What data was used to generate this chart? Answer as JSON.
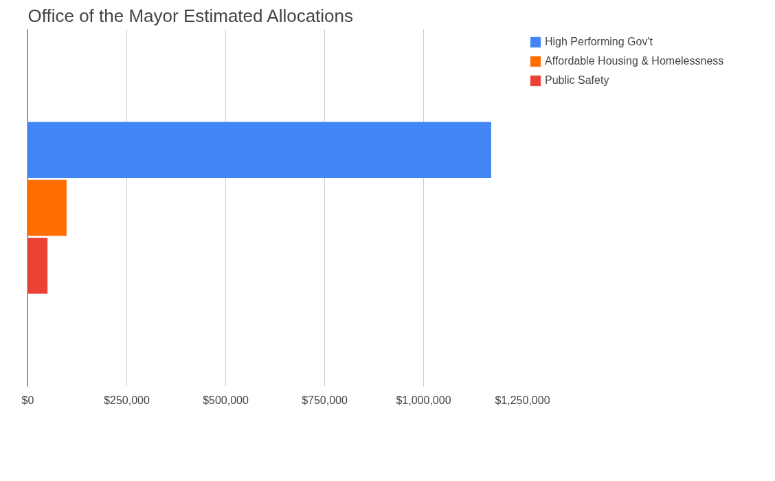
{
  "chart_data": {
    "type": "bar",
    "orientation": "horizontal",
    "title": "Office of the Mayor Estimated Allocations",
    "categories": [
      null
    ],
    "series": [
      {
        "name": "High Performing Gov't",
        "color": "#4285f4",
        "values": [
          1170000
        ]
      },
      {
        "name": "Affordable Housing & Homelessness",
        "color": "#ff6d01",
        "values": [
          97000
        ]
      },
      {
        "name": "Public Safety",
        "color": "#ea4335",
        "values": [
          49000
        ]
      }
    ],
    "xlim": [
      0,
      1250000
    ],
    "xticks": [
      {
        "value": 0,
        "label": "$0"
      },
      {
        "value": 250000,
        "label": "$250,000"
      },
      {
        "value": 500000,
        "label": "$500,000"
      },
      {
        "value": 750000,
        "label": "$750,000"
      },
      {
        "value": 1000000,
        "label": "$1,000,000"
      },
      {
        "value": 1250000,
        "label": "$1,250,000"
      }
    ],
    "grid": "x",
    "legend": "top right"
  }
}
